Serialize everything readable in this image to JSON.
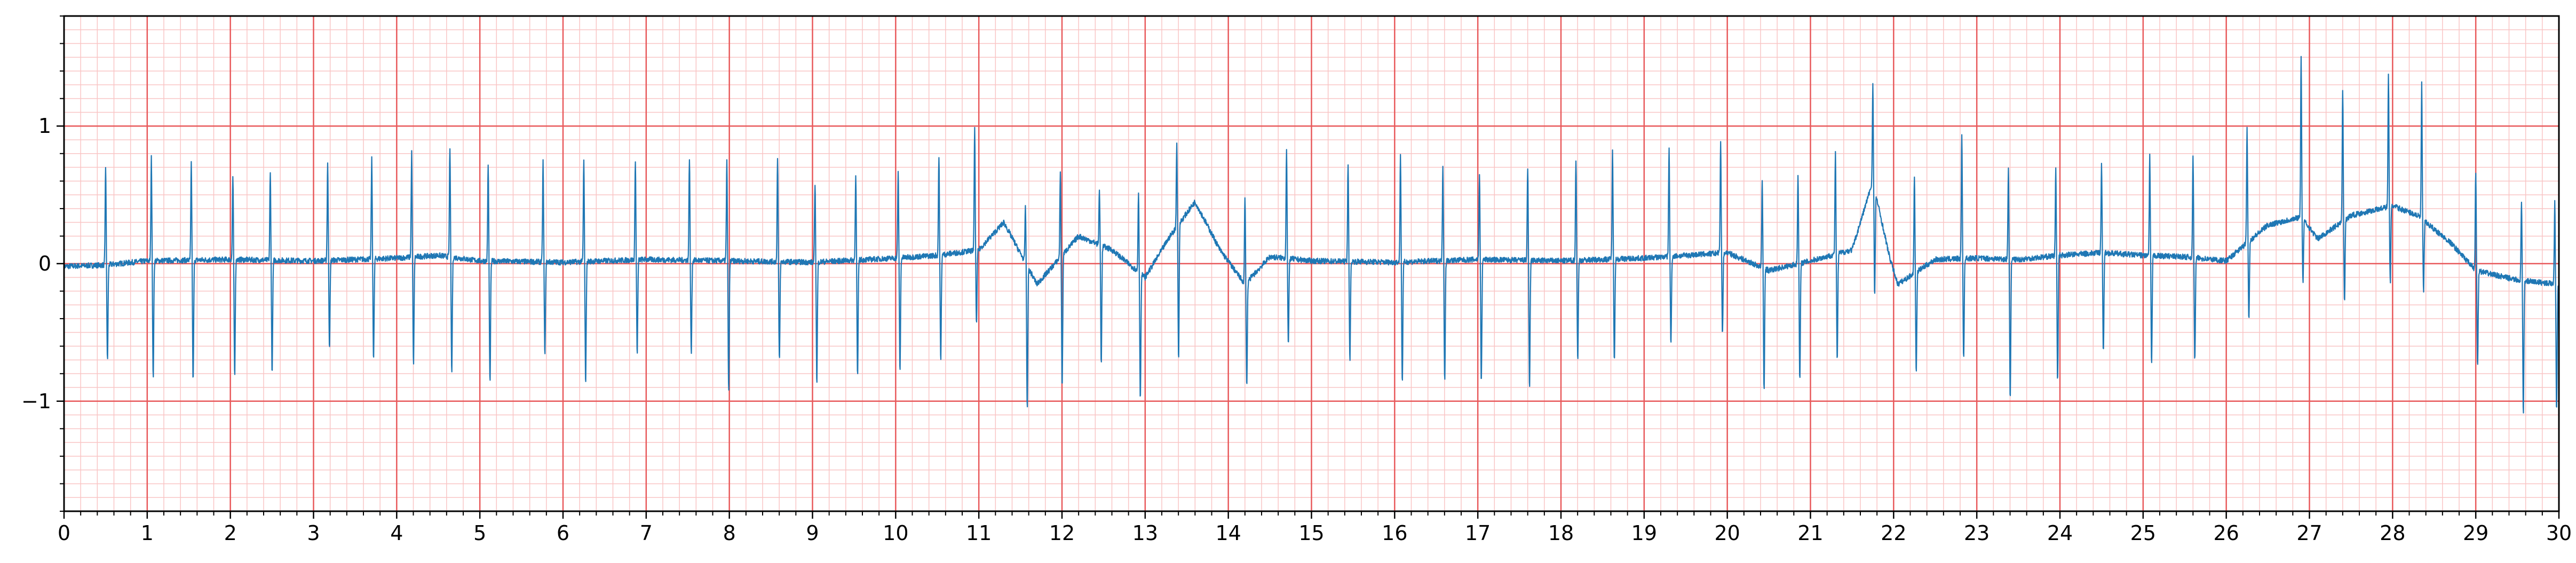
{
  "chart_data": {
    "type": "line",
    "title": "",
    "xlabel": "",
    "ylabel": "",
    "xlim": [
      0,
      30
    ],
    "ylim": [
      -1.8,
      1.8
    ],
    "x_ticks": [
      0,
      1,
      2,
      3,
      4,
      5,
      6,
      7,
      8,
      9,
      10,
      11,
      12,
      13,
      14,
      15,
      16,
      17,
      18,
      19,
      20,
      21,
      22,
      23,
      24,
      25,
      26,
      27,
      28,
      29,
      30
    ],
    "x_tick_labels": [
      "0",
      "1",
      "2",
      "3",
      "4",
      "5",
      "6",
      "7",
      "8",
      "9",
      "10",
      "11",
      "12",
      "13",
      "14",
      "15",
      "16",
      "17",
      "18",
      "19",
      "20",
      "21",
      "22",
      "23",
      "24",
      "25",
      "26",
      "27",
      "28",
      "29",
      "30"
    ],
    "y_ticks": [
      -1,
      0,
      1
    ],
    "y_tick_labels": [
      "−1",
      "0",
      "1"
    ],
    "grid": true,
    "grid_major": {
      "x_step": 1,
      "y_step": 1,
      "color": "#e8595b"
    },
    "grid_minor": {
      "x_step": 0.2,
      "y_step": 0.1,
      "color": "#f9c5c5"
    },
    "line_color": "#1f77b4",
    "series": [
      {
        "beats": [
          {
            "t": 0.5,
            "r": 0.72,
            "s": -0.7
          },
          {
            "t": 1.05,
            "r": 0.75,
            "s": -0.85
          },
          {
            "t": 1.53,
            "r": 0.7,
            "s": -0.88
          },
          {
            "t": 2.03,
            "r": 0.6,
            "s": -0.85
          },
          {
            "t": 2.48,
            "r": 0.63,
            "s": -0.82
          },
          {
            "t": 3.17,
            "r": 0.72,
            "s": -0.63
          },
          {
            "t": 3.7,
            "r": 0.73,
            "s": -0.73
          },
          {
            "t": 4.18,
            "r": 0.76,
            "s": -0.78
          },
          {
            "t": 4.64,
            "r": 0.8,
            "s": -0.85
          },
          {
            "t": 5.1,
            "r": 0.7,
            "s": -0.9
          },
          {
            "t": 5.76,
            "r": 0.73,
            "s": -0.68
          },
          {
            "t": 6.25,
            "r": 0.73,
            "s": -0.88
          },
          {
            "t": 6.87,
            "r": 0.73,
            "s": -0.68
          },
          {
            "t": 7.52,
            "r": 0.75,
            "s": -0.68
          },
          {
            "t": 7.97,
            "r": 0.73,
            "s": -0.95
          },
          {
            "t": 8.58,
            "r": 0.75,
            "s": -0.72
          },
          {
            "t": 9.03,
            "r": 0.58,
            "s": -0.88
          },
          {
            "t": 9.52,
            "r": 0.63,
            "s": -0.85
          },
          {
            "t": 10.03,
            "r": 0.63,
            "s": -0.82
          },
          {
            "t": 10.52,
            "r": 0.72,
            "s": -0.78
          },
          {
            "t": 10.95,
            "r": 0.9,
            "s": -0.55
          },
          {
            "t": 11.56,
            "r": 0.4,
            "s": -1.05
          },
          {
            "t": 11.98,
            "r": 0.63,
            "s": -0.97
          },
          {
            "t": 12.45,
            "r": 0.4,
            "s": -0.85
          },
          {
            "t": 12.92,
            "r": 0.58,
            "s": -0.92
          },
          {
            "t": 13.38,
            "r": 0.6,
            "s": -0.98
          },
          {
            "t": 14.2,
            "r": 0.63,
            "s": -0.75
          },
          {
            "t": 14.7,
            "r": 0.8,
            "s": -0.63
          },
          {
            "t": 15.44,
            "r": 0.72,
            "s": -0.72
          },
          {
            "t": 16.07,
            "r": 0.77,
            "s": -0.88
          },
          {
            "t": 16.58,
            "r": 0.7,
            "s": -0.88
          },
          {
            "t": 17.02,
            "r": 0.63,
            "s": -0.9
          },
          {
            "t": 17.6,
            "r": 0.68,
            "s": -0.95
          },
          {
            "t": 18.18,
            "r": 0.73,
            "s": -0.72
          },
          {
            "t": 18.62,
            "r": 0.78,
            "s": -0.73
          },
          {
            "t": 19.3,
            "r": 0.8,
            "s": -0.65
          },
          {
            "t": 19.92,
            "r": 0.82,
            "s": -0.58
          },
          {
            "t": 20.42,
            "r": 0.63,
            "s": -0.88
          },
          {
            "t": 20.85,
            "r": 0.65,
            "s": -0.85
          },
          {
            "t": 21.3,
            "r": 0.73,
            "s": -0.78
          },
          {
            "t": 21.75,
            "r": 0.7,
            "s": -0.78
          },
          {
            "t": 22.25,
            "r": 0.72,
            "s": -0.72
          },
          {
            "t": 22.82,
            "r": 0.92,
            "s": -0.73
          },
          {
            "t": 23.38,
            "r": 0.65,
            "s": -1.02
          },
          {
            "t": 23.95,
            "r": 0.63,
            "s": -0.92
          },
          {
            "t": 24.5,
            "r": 0.65,
            "s": -0.73
          },
          {
            "t": 25.08,
            "r": 0.72,
            "s": -0.78
          },
          {
            "t": 25.6,
            "r": 0.73,
            "s": -0.75
          },
          {
            "t": 26.25,
            "r": 0.85,
            "s": -0.55
          },
          {
            "t": 26.9,
            "r": 1.17,
            "s": -0.45
          },
          {
            "t": 27.4,
            "r": 0.95,
            "s": -0.58
          },
          {
            "t": 27.95,
            "r": 0.95,
            "s": -0.55
          },
          {
            "t": 28.35,
            "r": 0.98,
            "s": -0.52
          },
          {
            "t": 29.0,
            "r": 0.72,
            "s": -0.7
          },
          {
            "t": 29.55,
            "r": 0.58,
            "s": -0.98
          },
          {
            "t": 29.95,
            "r": 0.6,
            "s": -0.92
          }
        ],
        "baseline_points": [
          [
            0,
            -0.02
          ],
          [
            0.5,
            -0.01
          ],
          [
            1,
            0.02
          ],
          [
            2,
            0.03
          ],
          [
            3,
            0.02
          ],
          [
            4,
            0.04
          ],
          [
            4.5,
            0.06
          ],
          [
            5,
            0.02
          ],
          [
            6,
            0.01
          ],
          [
            7,
            0.03
          ],
          [
            8,
            0.02
          ],
          [
            9,
            0.01
          ],
          [
            10,
            0.04
          ],
          [
            10.5,
            0.06
          ],
          [
            11,
            0.1
          ],
          [
            11.3,
            0.3
          ],
          [
            11.7,
            -0.15
          ],
          [
            12.2,
            0.2
          ],
          [
            12.6,
            0.1
          ],
          [
            13.0,
            -0.1
          ],
          [
            13.3,
            0.2
          ],
          [
            13.6,
            0.45
          ],
          [
            13.9,
            0.1
          ],
          [
            14.2,
            -0.15
          ],
          [
            14.5,
            0.05
          ],
          [
            15,
            0.02
          ],
          [
            16,
            0.01
          ],
          [
            17,
            0.03
          ],
          [
            18,
            0.02
          ],
          [
            19,
            0.04
          ],
          [
            20,
            0.08
          ],
          [
            20.5,
            -0.05
          ],
          [
            21,
            0.02
          ],
          [
            21.5,
            0.1
          ],
          [
            21.75,
            0.6
          ],
          [
            21.95,
            0.05
          ],
          [
            22.05,
            -0.15
          ],
          [
            22.5,
            0.03
          ],
          [
            23,
            0.04
          ],
          [
            23.5,
            0.03
          ],
          [
            24,
            0.06
          ],
          [
            24.5,
            0.08
          ],
          [
            25,
            0.06
          ],
          [
            25.5,
            0.05
          ],
          [
            26,
            0.02
          ],
          [
            26.5,
            0.28
          ],
          [
            26.9,
            0.34
          ],
          [
            27.1,
            0.18
          ],
          [
            27.5,
            0.35
          ],
          [
            28,
            0.42
          ],
          [
            28.3,
            0.35
          ],
          [
            28.7,
            0.15
          ],
          [
            29,
            -0.05
          ],
          [
            29.5,
            -0.12
          ],
          [
            30,
            -0.15
          ]
        ]
      }
    ]
  }
}
